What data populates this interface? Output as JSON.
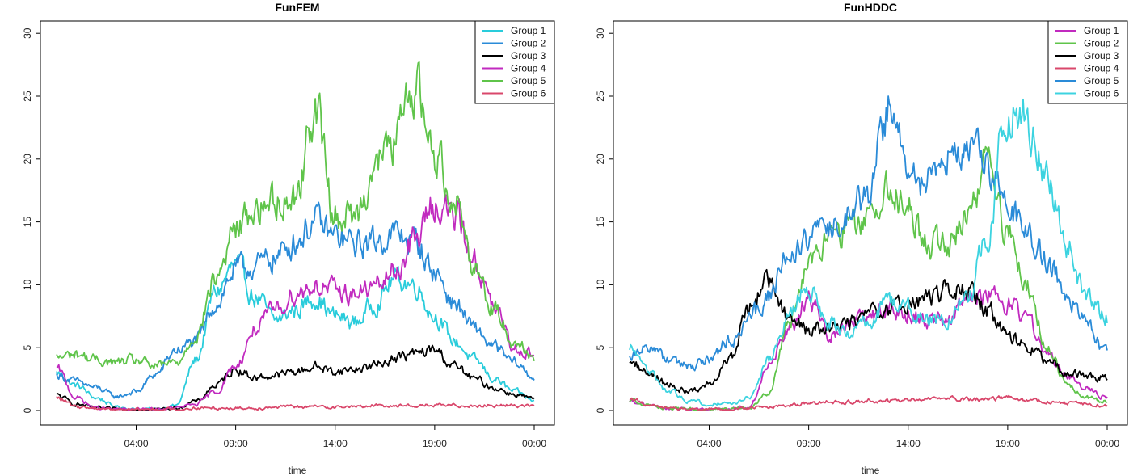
{
  "chart_data": [
    {
      "type": "line",
      "title": "FunFEM",
      "xlabel": "time",
      "ylabel": "",
      "ylim": [
        0,
        30
      ],
      "yticks": [
        0,
        5,
        10,
        15,
        20,
        25,
        30
      ],
      "xticks": [
        "04:00",
        "09:00",
        "14:00",
        "19:00",
        "00:00"
      ],
      "legend_position": "top-right",
      "x": [
        "00:00",
        "01:00",
        "02:00",
        "03:00",
        "04:00",
        "05:00",
        "06:00",
        "07:00",
        "08:00",
        "09:00",
        "10:00",
        "11:00",
        "12:00",
        "13:00",
        "14:00",
        "15:00",
        "16:00",
        "17:00",
        "18:00",
        "19:00",
        "20:00",
        "21:00",
        "22:00",
        "23:00",
        "00:00"
      ],
      "series": [
        {
          "name": "Group 1",
          "color": "#29CCDB",
          "values": [
            3.0,
            2.0,
            1.0,
            0.3,
            0.1,
            0.1,
            0.4,
            4,
            9.5,
            11.5,
            9,
            7.2,
            8,
            9,
            7.5,
            7,
            8.5,
            10.5,
            10,
            7.5,
            5.5,
            4,
            2.5,
            1.5,
            0.8
          ]
        },
        {
          "name": "Group 2",
          "color": "#2A8BD8",
          "values": [
            2.8,
            2.3,
            1.8,
            1.1,
            1.5,
            2.9,
            4.8,
            5.5,
            8.5,
            11.2,
            11.5,
            12.2,
            13.5,
            15,
            13.8,
            13.2,
            13.5,
            14,
            13.5,
            11,
            8.5,
            6.5,
            5,
            3.8,
            2.6
          ]
        },
        {
          "name": "Group 3",
          "color": "#000000",
          "values": [
            1.2,
            0.5,
            0.2,
            0.1,
            0.1,
            0.1,
            0.2,
            0.7,
            2,
            3.3,
            2.6,
            2.8,
            3.1,
            3.5,
            3.1,
            3.3,
            3.6,
            4.2,
            4.5,
            4.8,
            3.5,
            2.5,
            1.8,
            1.3,
            0.9
          ]
        },
        {
          "name": "Group 4",
          "color": "#C12ABF",
          "values": [
            3.3,
            1.0,
            0.2,
            0.1,
            0.1,
            0.1,
            0.2,
            0.5,
            1.5,
            3.5,
            6.5,
            8,
            9.3,
            10,
            9.5,
            9.3,
            9.8,
            11,
            13.5,
            16.5,
            15.5,
            12,
            8,
            5,
            4.5
          ]
        },
        {
          "name": "Group 5",
          "color": "#5FC44A",
          "values": [
            4.2,
            4.5,
            4.0,
            3.8,
            4.0,
            3.5,
            3.8,
            6,
            10.5,
            14.5,
            16,
            16.8,
            17,
            24,
            15.5,
            15.5,
            19.5,
            21.5,
            26,
            20.5,
            17,
            11.5,
            8,
            5.5,
            4.3
          ]
        },
        {
          "name": "Group 6",
          "color": "#D9476B",
          "values": [
            1.0,
            0.3,
            0.2,
            0.1,
            0.1,
            0.1,
            0.1,
            0.2,
            0.2,
            0.2,
            0.2,
            0.3,
            0.3,
            0.3,
            0.3,
            0.3,
            0.4,
            0.4,
            0.4,
            0.4,
            0.4,
            0.4,
            0.4,
            0.4,
            0.4
          ]
        }
      ]
    },
    {
      "type": "line",
      "title": "FunHDDC",
      "xlabel": "time",
      "ylabel": "",
      "ylim": [
        0,
        30
      ],
      "yticks": [
        0,
        5,
        10,
        15,
        20,
        25,
        30
      ],
      "xticks": [
        "04:00",
        "09:00",
        "14:00",
        "19:00",
        "00:00"
      ],
      "legend_position": "top-right",
      "x": [
        "00:00",
        "01:00",
        "02:00",
        "03:00",
        "04:00",
        "05:00",
        "06:00",
        "07:00",
        "08:00",
        "09:00",
        "10:00",
        "11:00",
        "12:00",
        "13:00",
        "14:00",
        "15:00",
        "16:00",
        "17:00",
        "18:00",
        "19:00",
        "20:00",
        "21:00",
        "22:00",
        "23:00",
        "00:00"
      ],
      "series": [
        {
          "name": "Group 1",
          "color": "#C12ABF",
          "values": [
            0.8,
            0.4,
            0.2,
            0.1,
            0.1,
            0.1,
            0.3,
            3.5,
            6.5,
            9,
            6,
            7,
            7.5,
            8,
            7.8,
            7,
            7.3,
            8.8,
            9.3,
            8.5,
            7,
            4.5,
            2.7,
            1.7,
            1.0
          ]
        },
        {
          "name": "Group 2",
          "color": "#5FC44A",
          "values": [
            0.8,
            0.4,
            0.2,
            0.1,
            0.1,
            0.1,
            0.2,
            1.5,
            7,
            12,
            13.5,
            14,
            15.5,
            18,
            16,
            13,
            13.5,
            16,
            20,
            14,
            10,
            5,
            2,
            1,
            0.7
          ]
        },
        {
          "name": "Group 3",
          "color": "#000000",
          "values": [
            4.0,
            3.0,
            2.0,
            1.5,
            2.0,
            4.0,
            8.0,
            10.5,
            7.5,
            6.5,
            6.5,
            7,
            7.5,
            8,
            8.5,
            8.8,
            9.5,
            9.5,
            8,
            6,
            5,
            4,
            3,
            2.7,
            2.7
          ]
        },
        {
          "name": "Group 4",
          "color": "#D9476B",
          "values": [
            1.0,
            0.4,
            0.2,
            0.1,
            0.1,
            0.1,
            0.2,
            0.3,
            0.4,
            0.6,
            0.7,
            0.7,
            0.8,
            0.8,
            0.8,
            0.9,
            0.9,
            0.9,
            0.9,
            1.0,
            0.8,
            0.7,
            0.6,
            0.5,
            0.4
          ]
        },
        {
          "name": "Group 5",
          "color": "#2A8BD8",
          "values": [
            4.5,
            5.0,
            4.0,
            3.5,
            4.0,
            5.5,
            7.5,
            9,
            12,
            14,
            15,
            16,
            17,
            24,
            19,
            18,
            20,
            21,
            19,
            16,
            14,
            12,
            9,
            7,
            4.5
          ]
        },
        {
          "name": "Group 6",
          "color": "#3CD3E0",
          "values": [
            5.0,
            3.0,
            1.5,
            0.8,
            0.5,
            0.5,
            1.0,
            4.0,
            7.5,
            10,
            7,
            6,
            7,
            8.5,
            8,
            7.2,
            7.5,
            9,
            14,
            24,
            23,
            18,
            13,
            9,
            7.5
          ]
        }
      ]
    }
  ]
}
